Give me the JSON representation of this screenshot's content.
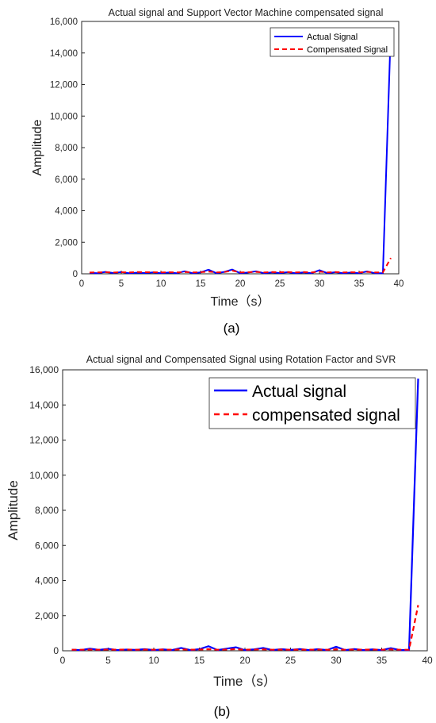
{
  "panels": [
    {
      "label": "(a)",
      "chart_data": {
        "type": "line",
        "title": "Actual signal and Support Vector Machine compensated signal",
        "xlabel": "Time（s）",
        "ylabel": "Amplitude",
        "xlim": [
          0,
          40
        ],
        "ylim": [
          0,
          16000
        ],
        "xticks": [
          0,
          5,
          10,
          15,
          20,
          25,
          30,
          35,
          40
        ],
        "xtick_labels": [
          "0",
          "5",
          "10",
          "15",
          "20",
          "25",
          "30",
          "35",
          "40"
        ],
        "yticks": [
          0,
          2000,
          4000,
          6000,
          8000,
          10000,
          12000,
          14000,
          16000
        ],
        "ytick_labels": [
          "0",
          "2,000",
          "4,000",
          "6,000",
          "8,000",
          "10,000",
          "12,000",
          "14,000",
          "16,000"
        ],
        "grid": false,
        "legend_position": "top-right",
        "x": [
          1,
          2,
          3,
          4,
          5,
          6,
          7,
          8,
          9,
          10,
          11,
          12,
          13,
          14,
          15,
          16,
          17,
          18,
          19,
          20,
          21,
          22,
          23,
          24,
          25,
          26,
          27,
          28,
          29,
          30,
          31,
          32,
          33,
          34,
          35,
          36,
          37,
          38,
          39
        ],
        "series": [
          {
            "name": "Actual Signal",
            "color": "#0000ff",
            "dash": "solid",
            "values": [
              60,
              40,
              120,
              50,
              110,
              40,
              70,
              50,
              90,
              40,
              80,
              40,
              160,
              40,
              90,
              260,
              40,
              120,
              270,
              40,
              80,
              160,
              40,
              90,
              50,
              100,
              40,
              90,
              40,
              230,
              40,
              100,
              40,
              80,
              40,
              150,
              40,
              40,
              15500
            ]
          },
          {
            "name": "Compensated Signal",
            "color": "#ff0000",
            "dash": "dashed",
            "values": [
              80,
              90,
              100,
              80,
              100,
              90,
              110,
              100,
              100,
              90,
              100,
              90,
              110,
              90,
              100,
              140,
              90,
              110,
              200,
              90,
              100,
              120,
              90,
              110,
              100,
              110,
              90,
              110,
              90,
              140,
              90,
              110,
              90,
              100,
              90,
              120,
              90,
              90,
              1000
            ]
          }
        ]
      }
    },
    {
      "label": "(b)",
      "chart_data": {
        "type": "line",
        "title": "Actual signal and Compensated Signal using Rotation Factor and SVR",
        "xlabel": "Time（s）",
        "ylabel": "Amplitude",
        "xlim": [
          0,
          40
        ],
        "ylim": [
          0,
          16000
        ],
        "xticks": [
          0,
          5,
          10,
          15,
          20,
          25,
          30,
          35,
          40
        ],
        "xtick_labels": [
          "0",
          "5",
          "10",
          "15",
          "20",
          "25",
          "30",
          "35",
          "40"
        ],
        "yticks": [
          0,
          2000,
          4000,
          6000,
          8000,
          10000,
          12000,
          14000,
          16000
        ],
        "ytick_labels": [
          "0",
          "2,000",
          "4,000",
          "6,000",
          "8,000",
          "10,000",
          "12,000",
          "14,000",
          "16,000"
        ],
        "grid": false,
        "legend_position": "top-right",
        "x": [
          1,
          2,
          3,
          4,
          5,
          6,
          7,
          8,
          9,
          10,
          11,
          12,
          13,
          14,
          15,
          16,
          17,
          18,
          19,
          20,
          21,
          22,
          23,
          24,
          25,
          26,
          27,
          28,
          29,
          30,
          31,
          32,
          33,
          34,
          35,
          36,
          37,
          38,
          39
        ],
        "series": [
          {
            "name": "Actual signal",
            "color": "#0000ff",
            "dash": "solid",
            "values": [
              60,
              40,
              120,
              50,
              110,
              40,
              70,
              50,
              90,
              40,
              80,
              40,
              160,
              40,
              90,
              260,
              40,
              120,
              200,
              40,
              80,
              160,
              40,
              90,
              50,
              100,
              40,
              90,
              40,
              230,
              40,
              100,
              40,
              80,
              40,
              150,
              40,
              40,
              15500
            ]
          },
          {
            "name": "compensated signal",
            "color": "#ff0000",
            "dash": "dashed",
            "values": [
              60,
              60,
              70,
              60,
              70,
              60,
              70,
              60,
              70,
              60,
              70,
              60,
              80,
              60,
              70,
              90,
              60,
              70,
              90,
              60,
              70,
              80,
              60,
              70,
              60,
              70,
              60,
              70,
              60,
              80,
              60,
              70,
              60,
              70,
              60,
              80,
              60,
              60,
              2600
            ]
          }
        ]
      }
    }
  ]
}
